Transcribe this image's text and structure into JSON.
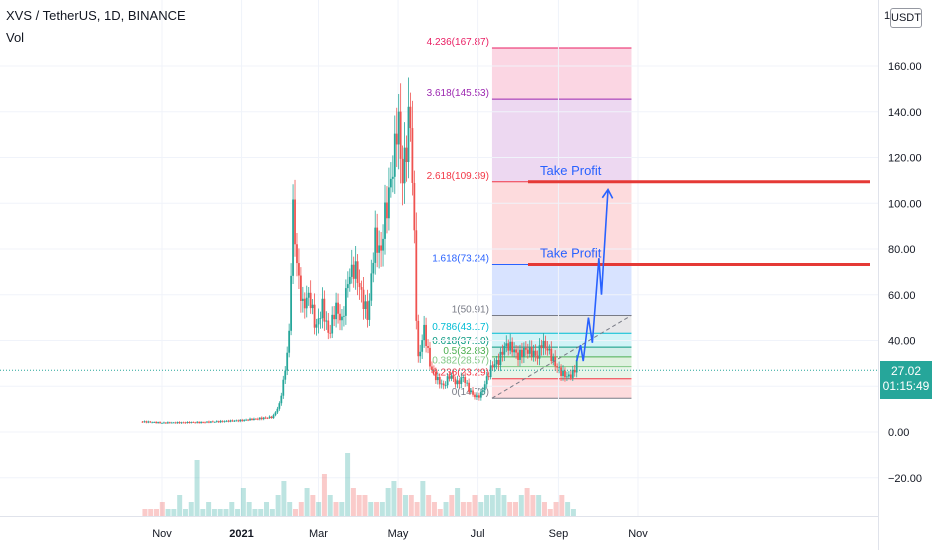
{
  "header": {
    "symbol": "XVS / TetherUS, 1D, BINANCE",
    "volume_label": "Vol",
    "currency": "USDT",
    "axis_top_value": "1"
  },
  "last_price": {
    "price": "27.02",
    "countdown": "01:15:49"
  },
  "colors": {
    "up": "#26a69a",
    "down": "#ef5350",
    "target_line": "#e53935",
    "annotation": "#2962ff"
  },
  "chart_data": {
    "type": "candlestick",
    "price_axis": {
      "range": [
        -37,
        180
      ],
      "ticks": [
        "160.00",
        "140.00",
        "120.00",
        "100.00",
        "80.00",
        "60.00",
        "40.00",
        "20.00",
        "0.00",
        "−20.00"
      ],
      "tick_values": [
        160,
        140,
        120,
        100,
        80,
        60,
        40,
        20,
        0,
        -20
      ]
    },
    "time_axis": {
      "ticks": [
        "Nov",
        "2021",
        "Mar",
        "May",
        "Jul",
        "Sep",
        "Nov"
      ],
      "tick_days": [
        0,
        61,
        120,
        181,
        242,
        304,
        365
      ]
    },
    "price_path": [
      [
        -15,
        4.5
      ],
      [
        0,
        4
      ],
      [
        30,
        4.2
      ],
      [
        60,
        5
      ],
      [
        85,
        6.5
      ],
      [
        90,
        12
      ],
      [
        94,
        25
      ],
      [
        98,
        45
      ],
      [
        100,
        100
      ],
      [
        104,
        70
      ],
      [
        108,
        55
      ],
      [
        113,
        60
      ],
      [
        118,
        45
      ],
      [
        123,
        55
      ],
      [
        128,
        42
      ],
      [
        133,
        55
      ],
      [
        138,
        48
      ],
      [
        143,
        68
      ],
      [
        148,
        72
      ],
      [
        153,
        60
      ],
      [
        158,
        50
      ],
      [
        163,
        85
      ],
      [
        168,
        78
      ],
      [
        170,
        92
      ],
      [
        173,
        100
      ],
      [
        178,
        120
      ],
      [
        181,
        140
      ],
      [
        184,
        110
      ],
      [
        187,
        122
      ],
      [
        190,
        143
      ],
      [
        193,
        95
      ],
      [
        196,
        30
      ],
      [
        201,
        45
      ],
      [
        206,
        28
      ],
      [
        211,
        23
      ],
      [
        216,
        20
      ],
      [
        221,
        25
      ],
      [
        226,
        21
      ],
      [
        231,
        24
      ],
      [
        236,
        18
      ],
      [
        241,
        15
      ],
      [
        245,
        17
      ],
      [
        248,
        22
      ],
      [
        253,
        29
      ],
      [
        258,
        31
      ],
      [
        263,
        38
      ],
      [
        268,
        37
      ],
      [
        273,
        33
      ],
      [
        278,
        36
      ],
      [
        283,
        35
      ],
      [
        288,
        33
      ],
      [
        291,
        39
      ],
      [
        296,
        36
      ],
      [
        301,
        30
      ],
      [
        306,
        26
      ],
      [
        311,
        24
      ],
      [
        316,
        26
      ],
      [
        318,
        31
      ]
    ],
    "volume": [
      1,
      1,
      1,
      2,
      1,
      1,
      3,
      1,
      2,
      8,
      1,
      2,
      1,
      1,
      1,
      2,
      1,
      4,
      2,
      1,
      1,
      2,
      1,
      3,
      5,
      2,
      1,
      2,
      4,
      3,
      2,
      6,
      3,
      2,
      2,
      9,
      4,
      3,
      3,
      2,
      2,
      2,
      4,
      5,
      4,
      3,
      3,
      2,
      5,
      3,
      2,
      1,
      2,
      3,
      4,
      2,
      2,
      3,
      2,
      3,
      3,
      4,
      3,
      2,
      2,
      3,
      4,
      3,
      3,
      2,
      1,
      2,
      3,
      2,
      1
    ],
    "fibonacci": [
      {
        "label": "4.236(167.87)",
        "value": 167.87,
        "color": "#e91e63"
      },
      {
        "label": "3.618(145.53)",
        "value": 145.53,
        "color": "#9c27b0"
      },
      {
        "label": "2.618(109.39)",
        "value": 109.39,
        "color": "#f23645"
      },
      {
        "label": "1.618(73.24)",
        "value": 73.24,
        "color": "#2962ff"
      },
      {
        "label": "1(50.91)",
        "value": 50.91,
        "color": "#787b86"
      },
      {
        "label": "0.786(43.17)",
        "value": 43.17,
        "color": "#00bcd4"
      },
      {
        "label": "0.618(37.10)",
        "value": 37.1,
        "color": "#089981"
      },
      {
        "label": "0.5(32.83)",
        "value": 32.83,
        "color": "#4caf50"
      },
      {
        "label": "0.382(28.57)",
        "value": 28.57,
        "color": "#81c784"
      },
      {
        "label": "0.236(23.29)",
        "value": 23.29,
        "color": "#f23645"
      },
      {
        "label": "0(14.76)",
        "value": 14.76,
        "color": "#787b86"
      }
    ],
    "targets": [
      {
        "label": "Take Profit",
        "value": 109.39
      },
      {
        "label": "Take Profit",
        "value": 73.24
      }
    ],
    "projection_path": [
      [
        318,
        31
      ],
      [
        321,
        38
      ],
      [
        323,
        31
      ],
      [
        327,
        50
      ],
      [
        330,
        39
      ],
      [
        335,
        76
      ],
      [
        337,
        60
      ],
      [
        342,
        106
      ]
    ],
    "trendline": {
      "from": [
        253,
        14.76
      ],
      "to": [
        360,
        51
      ]
    },
    "fib_range_days": [
      253,
      360
    ]
  }
}
